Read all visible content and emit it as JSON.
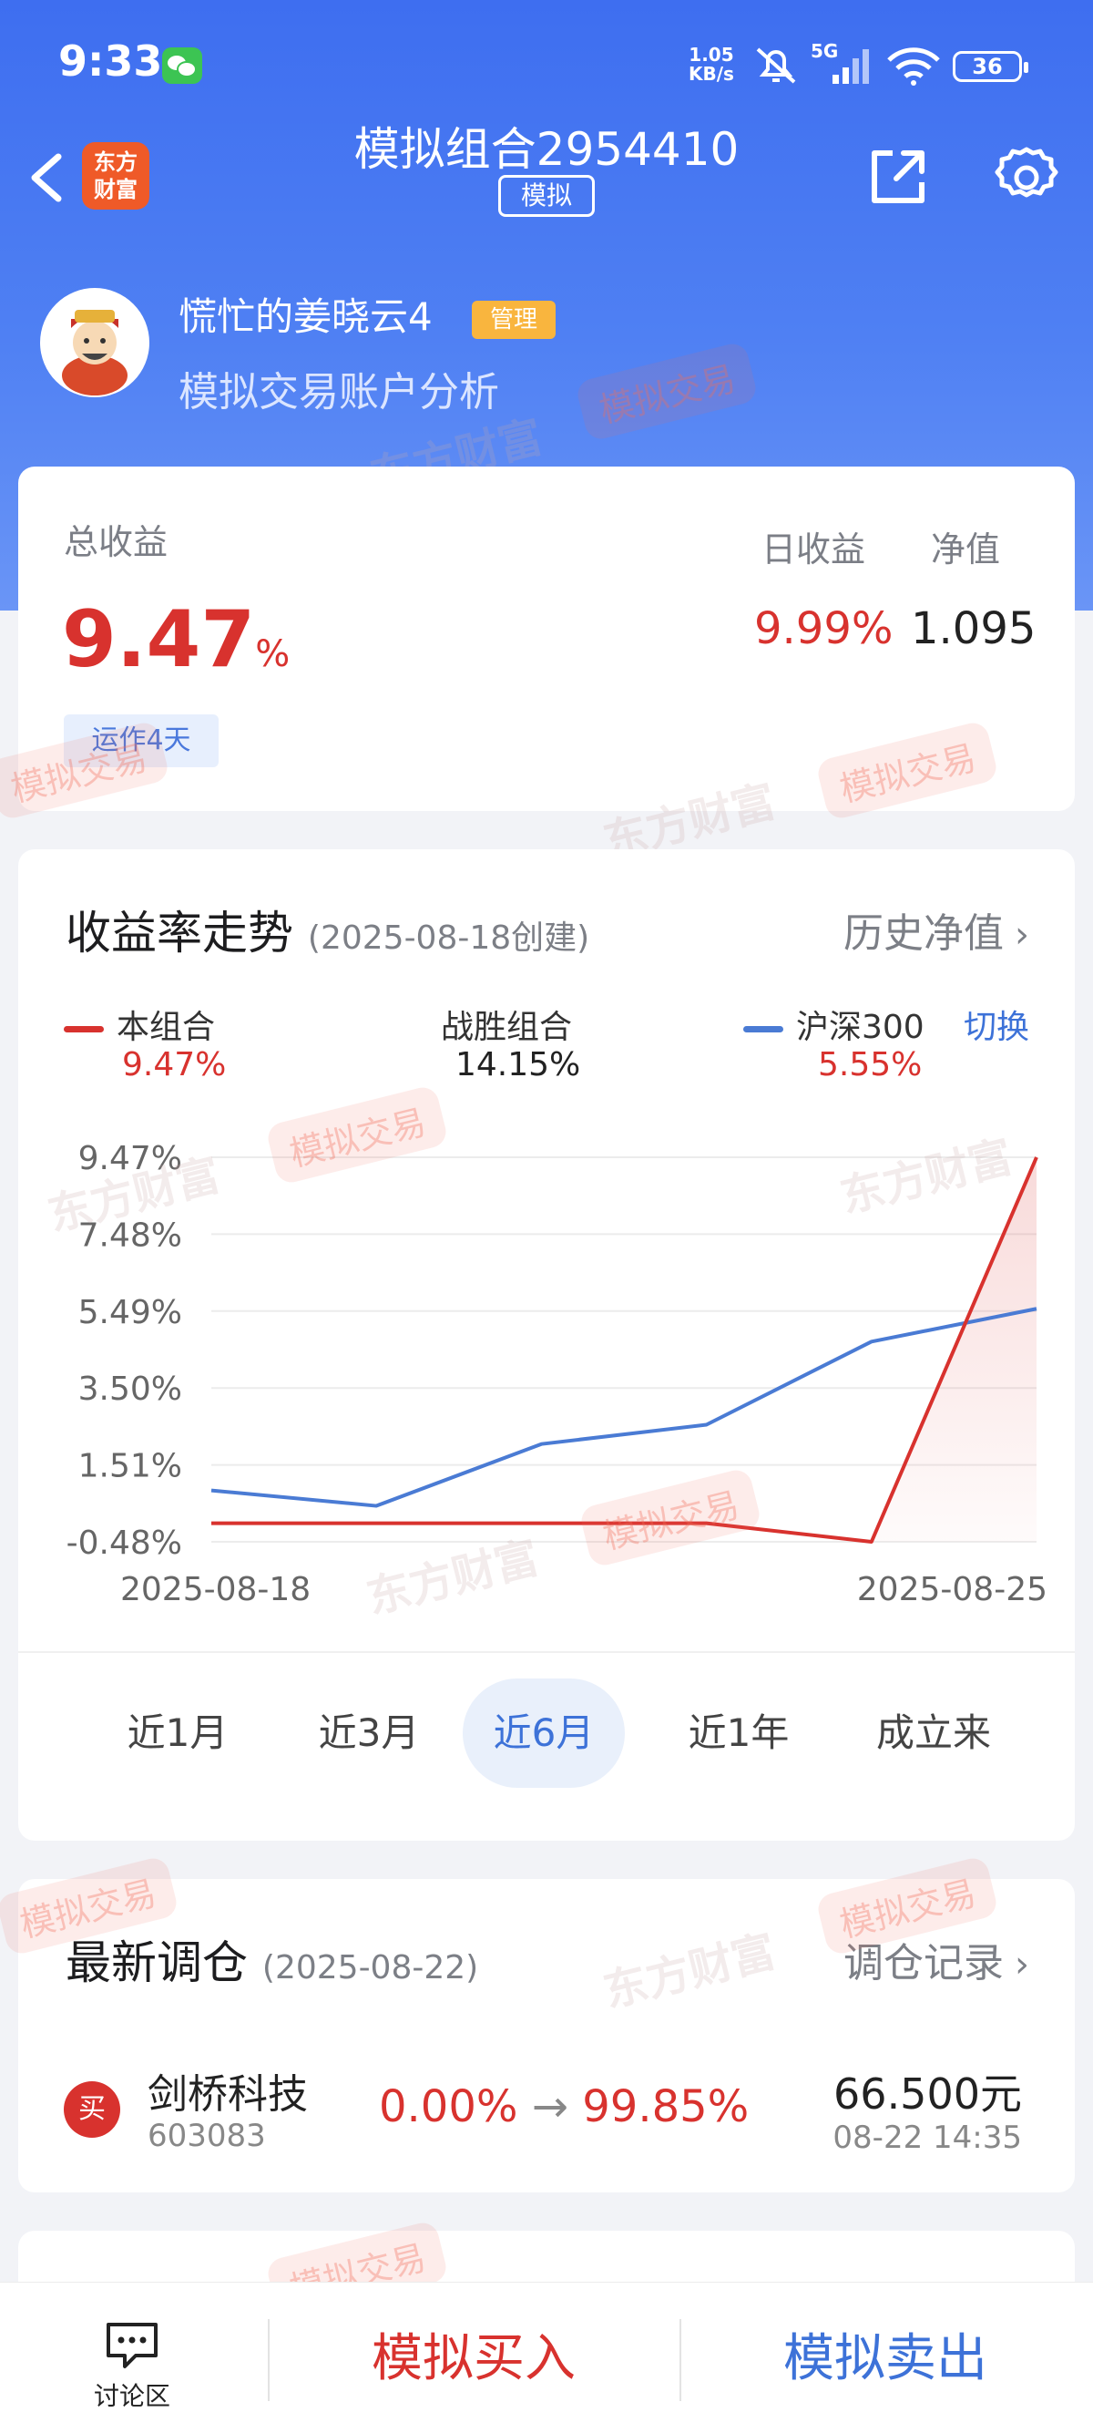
{
  "status_bar": {
    "time": "9:33",
    "net_speed_value": "1.05",
    "net_speed_unit": "KB/s",
    "network": "5G",
    "battery": "36"
  },
  "nav": {
    "title": "模拟组合2954410",
    "tag": "模拟",
    "logo_line1": "东方",
    "logo_line2": "财富"
  },
  "user": {
    "name": "慌忙的姜晓云4",
    "badge": "管理",
    "subtitle": "模拟交易账户分析"
  },
  "watermark": {
    "brand": "东方财富",
    "tag": "模拟交易"
  },
  "summary": {
    "total_label": "总收益",
    "total_value": "9.47",
    "total_unit": "%",
    "days": "运作4天",
    "daily_label": "日收益",
    "daily_value": "9.99%",
    "nav_label": "净值",
    "nav_value": "1.095"
  },
  "trend": {
    "title": "收益率走势",
    "created": "(2025-08-18创建)",
    "history_link": "历史净值",
    "legend": [
      {
        "name": "本组合",
        "value": "9.47%",
        "color": "#d8322e"
      },
      {
        "name": "战胜组合",
        "value": "14.15%"
      },
      {
        "name": "沪深300",
        "value": "5.55%",
        "color": "#4a7bd4"
      }
    ],
    "switch_label": "切换",
    "periods": [
      "近1月",
      "近3月",
      "近6月",
      "近1年",
      "成立来"
    ],
    "active_period": "近6月"
  },
  "chart_data": {
    "type": "line",
    "x_tick_labels": [
      "2025-08-18",
      "2025-08-25"
    ],
    "y_tick_labels": [
      "9.47%",
      "7.48%",
      "5.49%",
      "3.50%",
      "1.51%",
      "-0.48%"
    ],
    "ylim": [
      -0.48,
      9.47
    ],
    "grid": true,
    "x": [
      "2025-08-18",
      "2025-08-19",
      "2025-08-20",
      "2025-08-21",
      "2025-08-22",
      "2025-08-25"
    ],
    "series": [
      {
        "name": "本组合",
        "color": "#d8322e",
        "values": [
          0.0,
          0.0,
          0.0,
          0.0,
          -0.48,
          9.47
        ]
      },
      {
        "name": "沪深300",
        "color": "#4a7bd4",
        "values": [
          0.85,
          0.45,
          2.05,
          2.55,
          4.7,
          5.55
        ]
      }
    ]
  },
  "latest_trade": {
    "title": "最新调仓",
    "date": "(2025-08-22)",
    "record_link": "调仓记录",
    "action": "买",
    "stock_name": "剑桥科技",
    "stock_code": "603083",
    "from_weight": "0.00%",
    "to_weight": "99.85%",
    "arrow": "→",
    "price": "66.500元",
    "time": "08-22  14:35"
  },
  "bottom_bar": {
    "forum": "讨论区",
    "buy": "模拟买入",
    "sell": "模拟卖出"
  }
}
